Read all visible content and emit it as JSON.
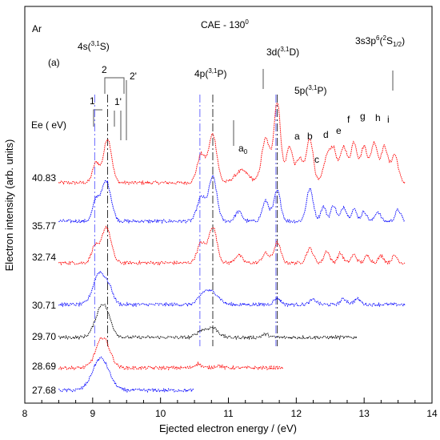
{
  "chart_data": {
    "type": "line",
    "title": "CAE - 130⁰",
    "xlabel": "Ejected electron energy / (eV)",
    "ylabel": "Electron intensity (arb. units)",
    "xlim": [
      8,
      14
    ],
    "x_ticks": [
      "8",
      "9",
      "10",
      "11",
      "12",
      "13",
      "14"
    ],
    "grid": false,
    "legend": "none",
    "panel_label": "(a)",
    "target_label": "Ar",
    "ee_header": "Ee ( eV)",
    "series": [
      {
        "energy": "40.83",
        "color": "#ff0000",
        "x_range": [
          8.5,
          13.6
        ]
      },
      {
        "energy": "35.77",
        "color": "#0000ff",
        "x_range": [
          8.5,
          13.6
        ]
      },
      {
        "energy": "32.74",
        "color": "#ff0000",
        "x_range": [
          8.5,
          13.6
        ]
      },
      {
        "energy": "30.71",
        "color": "#0000ff",
        "x_range": [
          8.5,
          13.6
        ]
      },
      {
        "energy": "29.70",
        "color": "#000000",
        "x_range": [
          8.5,
          12.9
        ]
      },
      {
        "energy": "28.69",
        "color": "#ff0000",
        "x_range": [
          8.5,
          11.8
        ]
      },
      {
        "energy": "27.68",
        "color": "#0000ff",
        "x_range": [
          8.5,
          10.5
        ]
      }
    ],
    "annotations": {
      "state_4s": "4s(3,1S)",
      "state_4p": "4p(3,1P)",
      "state_3d": "3d(3,1D)",
      "state_5p": "5p(3,1P)",
      "state_3s3p6": "3s3p6(2S1/2)",
      "marks": [
        "1",
        "1'",
        "2",
        "2'",
        "a0",
        "a",
        "b",
        "c",
        "d",
        "e",
        "f",
        "g",
        "h",
        "i"
      ]
    },
    "peak_markers_eV": {
      "blue_dashdot": [
        9.03,
        10.58,
        11.7
      ],
      "black_dashdot": [
        9.22,
        10.77,
        11.72
      ]
    }
  }
}
